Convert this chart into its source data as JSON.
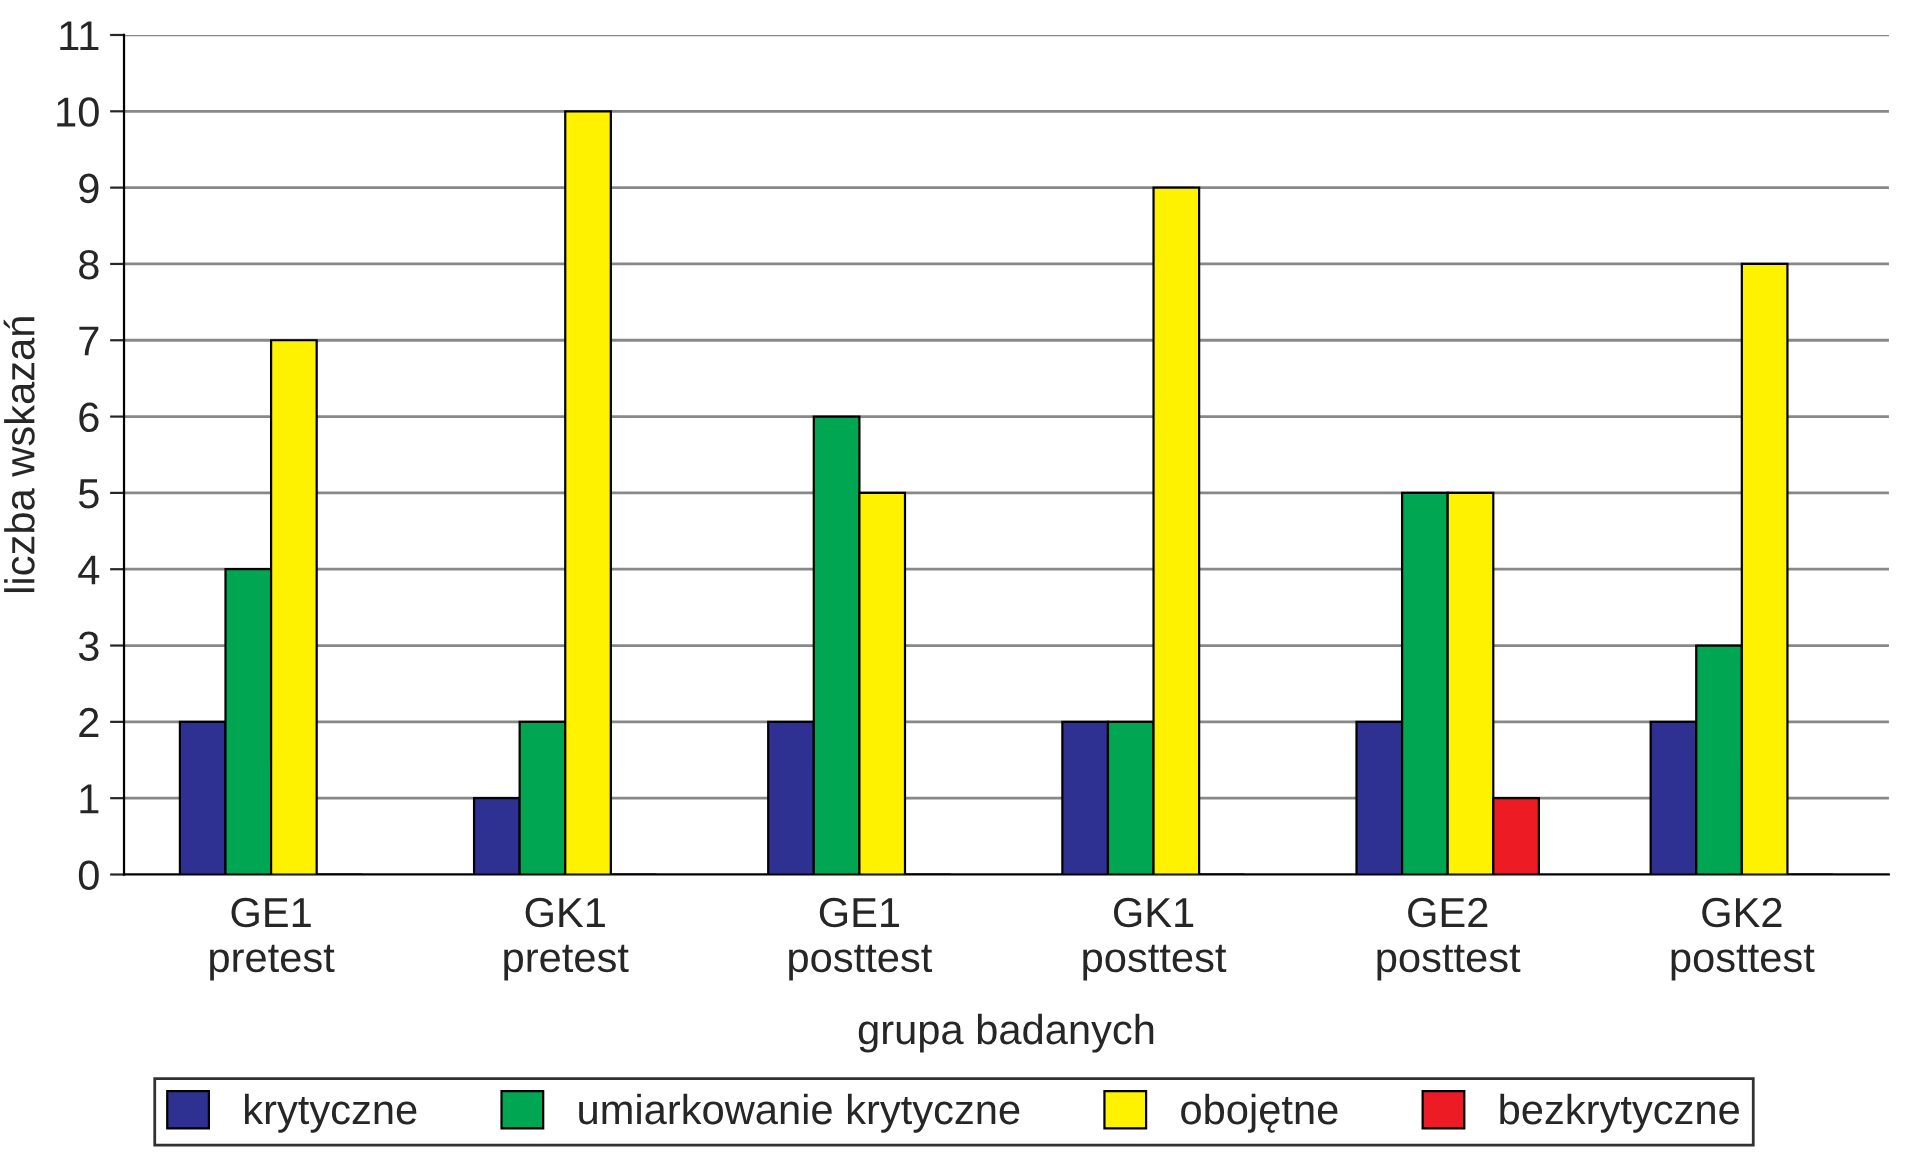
{
  "chart_data": {
    "type": "bar",
    "xlabel": "grupa badanych",
    "ylabel": "liczba wskazań",
    "categories": [
      "GE1\npretest",
      "GK1\npretest",
      "GE1\nposttest",
      "GK1\nposttest",
      "GE2\nposttest",
      "GK2\nposttest"
    ],
    "series": [
      {
        "name": "krytyczne",
        "color": "#2e3192",
        "values": [
          2,
          1,
          2,
          2,
          2,
          2
        ]
      },
      {
        "name": "umiarkowanie krytyczne",
        "color": "#00a651",
        "values": [
          4,
          2,
          6,
          2,
          5,
          3
        ]
      },
      {
        "name": "obojętne",
        "color": "#fff200",
        "values": [
          7,
          10,
          5,
          9,
          5,
          8
        ]
      },
      {
        "name": "bezkrytyczne",
        "color": "#ed1c24",
        "values": [
          0,
          0,
          0,
          0,
          1,
          0
        ]
      }
    ],
    "ylim": [
      0,
      11
    ],
    "yticks": [
      0,
      1,
      2,
      3,
      4,
      5,
      6,
      7,
      8,
      9,
      10,
      11
    ],
    "grid": "y",
    "legend": "bottom"
  }
}
